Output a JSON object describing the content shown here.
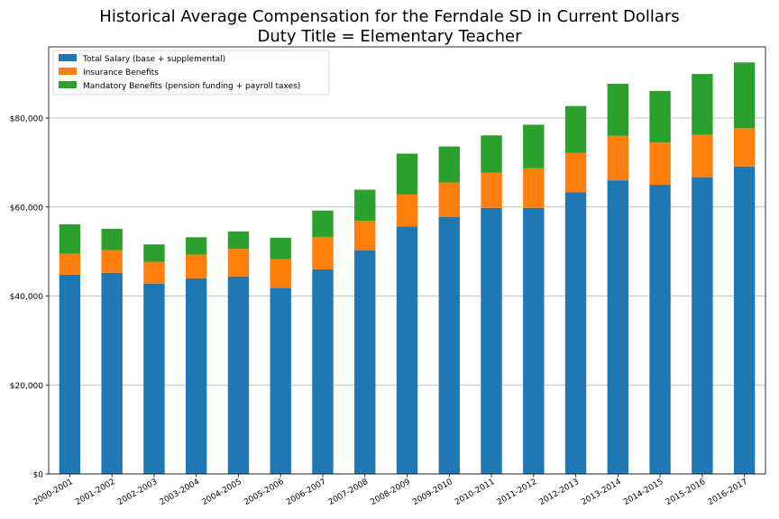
{
  "chart_data": {
    "type": "bar",
    "stacked": true,
    "title": "Historical Average Compensation for the Ferndale SD in Current Dollars",
    "subtitle": "Duty Title = Elementary Teacher",
    "xlabel": "",
    "ylabel": "",
    "ylim": [
      0,
      96000
    ],
    "yticks": [
      0,
      20000,
      40000,
      60000,
      80000
    ],
    "ytick_labels": [
      "$0",
      "$20,000",
      "$40,000",
      "$60,000",
      "$80,000"
    ],
    "grid": "horizontal",
    "legend_position": "top-left",
    "categories": [
      "2000-2001",
      "2001-2002",
      "2002-2003",
      "2003-2004",
      "2004-2005",
      "2005-2006",
      "2006-2007",
      "2007-2008",
      "2008-2009",
      "2009-2010",
      "2010-2011",
      "2011-2012",
      "2012-2013",
      "2013-2014",
      "2014-2015",
      "2015-2016",
      "2016-2017"
    ],
    "series": [
      {
        "name": "Total Salary (base + supplemental)",
        "color": "#1f77b4",
        "values": [
          44800,
          45200,
          42800,
          44000,
          44400,
          41800,
          46000,
          50300,
          55600,
          57800,
          59800,
          59800,
          63300,
          66000,
          65000,
          66700,
          69100
        ]
      },
      {
        "name": "Insurance Benefits",
        "color": "#ff7f0e",
        "values": [
          4700,
          5100,
          4900,
          5300,
          6200,
          6500,
          7200,
          6600,
          7200,
          7700,
          7900,
          8900,
          8900,
          10000,
          9500,
          9500,
          8600
        ]
      },
      {
        "name": "Mandatory Benefits (pension funding + payroll taxes)",
        "color": "#2ca02c",
        "values": [
          6600,
          4800,
          3900,
          3900,
          3900,
          4800,
          6000,
          7000,
          9200,
          8100,
          8400,
          9800,
          10500,
          11700,
          11600,
          13700,
          14800
        ]
      }
    ]
  }
}
